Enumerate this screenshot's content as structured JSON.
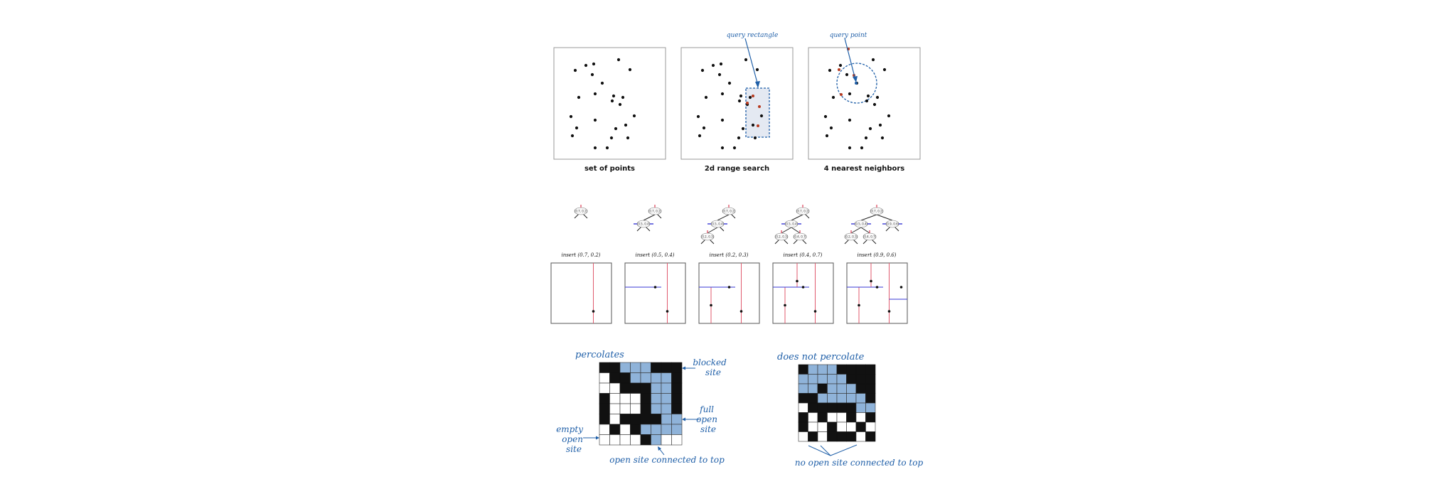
{
  "panels": [
    {
      "caption": "set of points"
    },
    {
      "caption": "2d range search",
      "annotation": "query rectangle"
    },
    {
      "caption": "4 nearest neighbors",
      "annotation": "query point"
    }
  ],
  "kdtree": {
    "steps": [
      {
        "label": "insert (0.7, 0.2)",
        "nodes": [
          "(0.7, 0.2)"
        ]
      },
      {
        "label": "insert (0.5, 0.4)",
        "nodes": [
          "(0.7, 0.2)",
          "(0.5, 0.4)"
        ]
      },
      {
        "label": "insert (0.2, 0.3)",
        "nodes": [
          "(0.7, 0.2)",
          "(0.5, 0.4)",
          "(0.2, 0.3)"
        ]
      },
      {
        "label": "insert (0.4, 0.7)",
        "nodes": [
          "(0.7, 0.2)",
          "(0.5, 0.4)",
          "(0.2, 0.3)",
          "(0.4, 0.7)"
        ]
      },
      {
        "label": "insert (0.9, 0.6)",
        "nodes": [
          "(0.7, 0.2)",
          "(0.5, 0.4)",
          "(0.9, 0.6)",
          "(0.2, 0.3)",
          "(0.4, 0.7)"
        ]
      }
    ]
  },
  "percolation": {
    "left": {
      "title": "percolates",
      "labels": {
        "blocked": [
          "blocked",
          "site"
        ],
        "full": [
          "full",
          "open",
          "site"
        ],
        "empty": [
          "empty",
          "open",
          "site"
        ],
        "connected": "open site connected to top"
      },
      "grid": [
        "BBFFFBBB",
        "EBBFFFFB",
        "EEBBBFFB",
        "BEEEBFFB",
        "BEEEBFFB",
        "BEBBBBFF",
        "EBEBFFFF",
        "EEEEBFEE"
      ]
    },
    "right": {
      "title": "does not percolate",
      "labels": {
        "connected": "no open site connected to top"
      },
      "grid": [
        "BFFFBBBB",
        "FFFFFBBB",
        "FFBFFFBB",
        "BBFFFFFB",
        "EBBBBBFF",
        "BEBEEBEB",
        "BEEBEEBE",
        "EBEBBBEB"
      ]
    }
  },
  "colors": {
    "point": "#111111",
    "highlight": "#b73a1f",
    "query": "#1f5fa8",
    "full_site": "#8fb3d9",
    "blocked_site": "#111111",
    "empty_site": "#ffffff",
    "vertical_split": "#e05a6e",
    "horizontal_split": "#3a3ad6"
  }
}
